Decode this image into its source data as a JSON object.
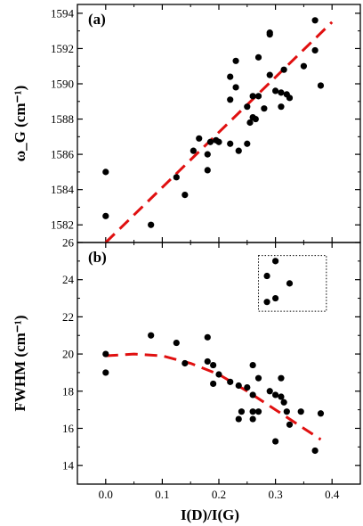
{
  "chart_data": [
    {
      "type": "scatter",
      "panel_label": "(a)",
      "ylabel": "ω_G (cm⁻¹)",
      "xlim": [
        -0.05,
        0.45
      ],
      "ylim": [
        1581,
        1594.5
      ],
      "xticks": [
        0.0,
        0.1,
        0.2,
        0.3,
        0.4
      ],
      "yticks": [
        1582,
        1584,
        1586,
        1588,
        1590,
        1592,
        1594
      ],
      "ytick_labels": [
        "1582",
        "1584",
        "1586",
        "1588",
        "1590",
        "1592",
        "1594"
      ],
      "marker_color": "#000000",
      "points": [
        [
          0.0,
          1585.0
        ],
        [
          0.0,
          1582.5
        ],
        [
          0.08,
          1582.0
        ],
        [
          0.125,
          1584.7
        ],
        [
          0.14,
          1583.7
        ],
        [
          0.155,
          1586.2
        ],
        [
          0.165,
          1586.9
        ],
        [
          0.18,
          1585.1
        ],
        [
          0.18,
          1586.0
        ],
        [
          0.185,
          1586.7
        ],
        [
          0.195,
          1586.8
        ],
        [
          0.2,
          1586.7
        ],
        [
          0.22,
          1586.6
        ],
        [
          0.22,
          1589.1
        ],
        [
          0.22,
          1590.4
        ],
        [
          0.23,
          1591.3
        ],
        [
          0.23,
          1589.8
        ],
        [
          0.235,
          1586.2
        ],
        [
          0.25,
          1586.6
        ],
        [
          0.25,
          1588.7
        ],
        [
          0.255,
          1587.8
        ],
        [
          0.26,
          1589.3
        ],
        [
          0.26,
          1588.1
        ],
        [
          0.265,
          1588.0
        ],
        [
          0.27,
          1591.5
        ],
        [
          0.27,
          1589.3
        ],
        [
          0.28,
          1588.6
        ],
        [
          0.29,
          1592.8
        ],
        [
          0.29,
          1592.9
        ],
        [
          0.29,
          1590.5
        ],
        [
          0.3,
          1589.6
        ],
        [
          0.31,
          1588.7
        ],
        [
          0.31,
          1589.5
        ],
        [
          0.315,
          1590.8
        ],
        [
          0.32,
          1589.4
        ],
        [
          0.325,
          1589.2
        ],
        [
          0.35,
          1591.0
        ],
        [
          0.37,
          1593.6
        ],
        [
          0.37,
          1591.9
        ],
        [
          0.38,
          1589.9
        ]
      ],
      "fit": {
        "color": "#e01010",
        "style": "dashed",
        "type": "linear",
        "x_range": [
          0.0,
          0.4
        ],
        "y_range": [
          1581.0,
          1593.5
        ]
      }
    },
    {
      "type": "scatter",
      "panel_label": "(b)",
      "xlabel": "I(D)/I(G)",
      "ylabel": "FWHM (cm⁻¹)",
      "xlim": [
        -0.05,
        0.45
      ],
      "ylim": [
        13,
        26
      ],
      "xticks": [
        0.0,
        0.1,
        0.2,
        0.3,
        0.4
      ],
      "xtick_labels": [
        "0.0",
        "0.1",
        "0.2",
        "0.3",
        "0.4"
      ],
      "yticks": [
        14,
        16,
        18,
        20,
        22,
        24,
        26
      ],
      "ytick_labels": [
        "14",
        "16",
        "18",
        "20",
        "22",
        "24",
        "26"
      ],
      "marker_color": "#000000",
      "points": [
        [
          0.0,
          20.0
        ],
        [
          0.0,
          19.0
        ],
        [
          0.08,
          21.0
        ],
        [
          0.125,
          20.6
        ],
        [
          0.14,
          19.5
        ],
        [
          0.18,
          20.9
        ],
        [
          0.18,
          19.6
        ],
        [
          0.19,
          19.4
        ],
        [
          0.19,
          18.4
        ],
        [
          0.2,
          18.9
        ],
        [
          0.22,
          18.5
        ],
        [
          0.235,
          18.3
        ],
        [
          0.235,
          16.5
        ],
        [
          0.24,
          16.9
        ],
        [
          0.25,
          18.2
        ],
        [
          0.26,
          19.4
        ],
        [
          0.26,
          17.8
        ],
        [
          0.26,
          16.9
        ],
        [
          0.26,
          16.5
        ],
        [
          0.27,
          18.7
        ],
        [
          0.27,
          16.9
        ],
        [
          0.29,
          18.0
        ],
        [
          0.3,
          17.8
        ],
        [
          0.3,
          15.3
        ],
        [
          0.31,
          18.7
        ],
        [
          0.31,
          17.7
        ],
        [
          0.315,
          17.4
        ],
        [
          0.32,
          16.9
        ],
        [
          0.325,
          16.2
        ],
        [
          0.345,
          16.9
        ],
        [
          0.37,
          14.8
        ],
        [
          0.38,
          16.8
        ]
      ],
      "inset_points": [
        [
          0.3,
          25.0
        ],
        [
          0.285,
          24.2
        ],
        [
          0.3,
          23.0
        ],
        [
          0.285,
          22.8
        ],
        [
          0.325,
          23.8
        ]
      ],
      "inset_box": {
        "x": [
          0.27,
          0.39
        ],
        "y": [
          22.3,
          25.3
        ],
        "style": "dotted"
      },
      "fit": {
        "color": "#e01010",
        "style": "dashed",
        "type": "quadratic",
        "x_range": [
          0.0,
          0.38
        ],
        "points": [
          [
            0.0,
            19.9
          ],
          [
            0.05,
            20.0
          ],
          [
            0.1,
            19.9
          ],
          [
            0.15,
            19.5
          ],
          [
            0.2,
            18.9
          ],
          [
            0.25,
            18.0
          ],
          [
            0.3,
            17.0
          ],
          [
            0.35,
            16.0
          ],
          [
            0.38,
            15.4
          ]
        ]
      }
    }
  ]
}
